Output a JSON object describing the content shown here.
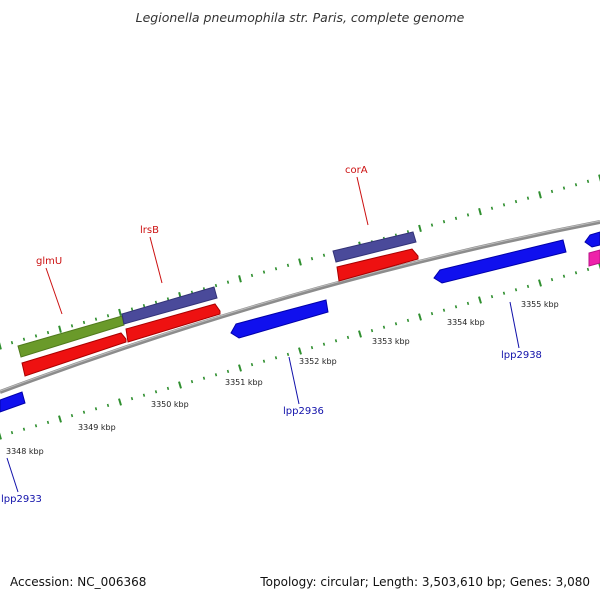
{
  "title": "Legionella pneumophila str. Paris, complete genome",
  "footer": {
    "accession": "Accession: NC_006368",
    "summary": "Topology: circular; Length: 3,503,610 bp; Genes: 3,080"
  },
  "colors": {
    "backbone": "#8c8c8c",
    "tick": "#2f8f2f",
    "reverse_gene": "#1010ee",
    "forward_gene": "#ee1111",
    "purple_gene": "#4a4a9a",
    "olive_gene": "#6a9a2a",
    "magenta_gene": "#ee22aa",
    "label_gene_top": "#cc1111",
    "label_gene_bottom": "#1111aa",
    "scale_label": "#222222"
  },
  "scale_labels": [
    {
      "text": "3348 kbp",
      "kbp": 3348
    },
    {
      "text": "3349 kbp",
      "kbp": 3349
    },
    {
      "text": "3350 kbp",
      "kbp": 3350
    },
    {
      "text": "3351 kbp",
      "kbp": 3351
    },
    {
      "text": "3352 kbp",
      "kbp": 3352
    },
    {
      "text": "3353 kbp",
      "kbp": 3353
    },
    {
      "text": "3354 kbp",
      "kbp": 3354
    },
    {
      "text": "3355 kbp",
      "kbp": 3355
    }
  ],
  "gene_labels_top": [
    {
      "text": "glmU"
    },
    {
      "text": "lrsB"
    },
    {
      "text": "corA"
    }
  ],
  "gene_labels_bottom": [
    {
      "text": "lpp2933"
    },
    {
      "text": "lpp2936"
    },
    {
      "text": "lpp2938"
    }
  ]
}
